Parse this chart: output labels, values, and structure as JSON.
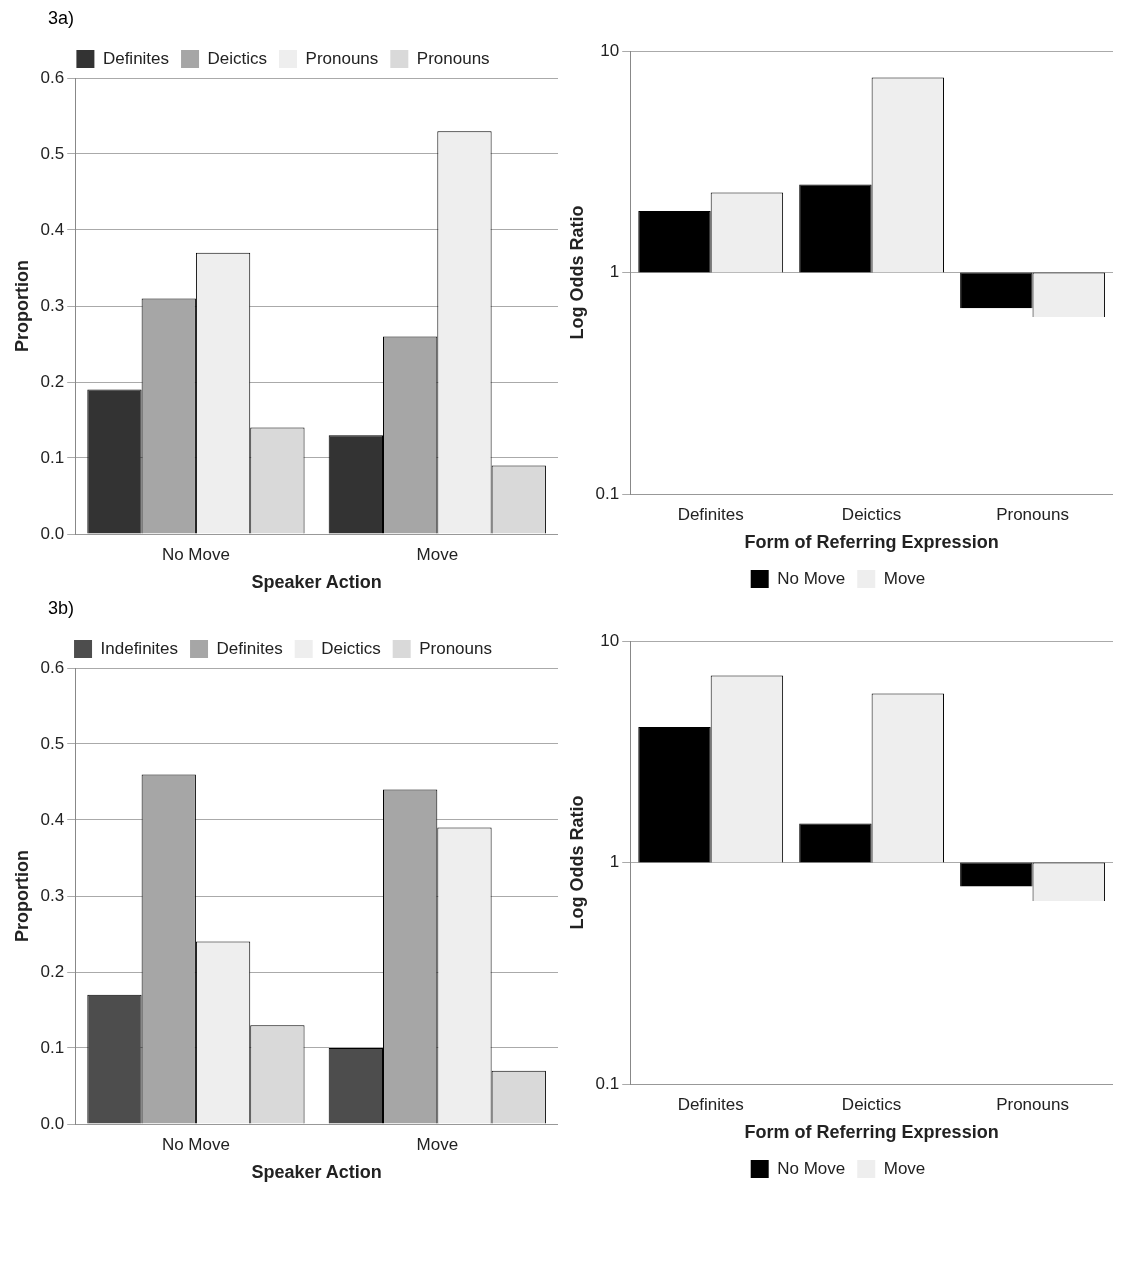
{
  "chart_data": [
    {
      "type": "bar",
      "title": "3a)",
      "categories": [
        "No Move",
        "Move"
      ],
      "xlabel": "Speaker Action",
      "ylabel": "Proportion",
      "ylim": [
        0,
        0.6
      ],
      "yticks": [
        {
          "value": 0,
          "label": "0.0"
        },
        {
          "value": 0.1,
          "label": "0.1"
        },
        {
          "value": 0.2,
          "label": "0.2"
        },
        {
          "value": 0.3,
          "label": "0.3"
        },
        {
          "value": 0.4,
          "label": "0.4"
        },
        {
          "value": 0.5,
          "label": "0.5"
        },
        {
          "value": 0.6,
          "label": "0.6"
        }
      ],
      "grid": "y",
      "legend": "top",
      "series": [
        {
          "name": "Definites",
          "color": "#333333",
          "values": [
            0.19,
            0.13
          ]
        },
        {
          "name": "Deictics",
          "color": "#a6a6a6",
          "values": [
            0.31,
            0.26
          ]
        },
        {
          "name": "Pronouns",
          "color": "#eeeeee",
          "values": [
            0.37,
            0.53
          ]
        },
        {
          "name": "Pronouns",
          "color": "#d9d9d9",
          "values": [
            0.14,
            0.09
          ]
        }
      ]
    },
    {
      "type": "bar",
      "categories": [
        "Definites",
        "Deictics",
        "Pronouns"
      ],
      "xlabel": "Form of Referring Expression",
      "ylabel": "Log Odds Ratio",
      "log": "y",
      "ylim": [
        0.1,
        10
      ],
      "yticks": [
        0.1,
        1,
        10
      ],
      "grid": "y",
      "legend": "bottom",
      "series": [
        {
          "name": "No Move",
          "color": "#000000",
          "values": [
            0.9,
            1.5,
            -0.31
          ],
          "base": [
            1,
            1,
            1
          ]
        },
        {
          "name": "Move",
          "color": "#eeeeee",
          "values": [
            1.3,
            6.6,
            -0.37
          ],
          "base": [
            1,
            1,
            1
          ]
        }
      ]
    },
    {
      "type": "bar",
      "title": "3b)",
      "categories": [
        "No Move",
        "Move"
      ],
      "xlabel": "Speaker Action",
      "ylabel": "Proportion",
      "ylim": [
        0,
        0.6
      ],
      "yticks": [
        {
          "value": 0,
          "label": "0.0"
        },
        {
          "value": 0.1,
          "label": "0.1"
        },
        {
          "value": 0.2,
          "label": "0.2"
        },
        {
          "value": 0.3,
          "label": "0.3"
        },
        {
          "value": 0.4,
          "label": "0.4"
        },
        {
          "value": 0.5,
          "label": "0.5"
        },
        {
          "value": 0.6,
          "label": "0.6"
        }
      ],
      "grid": "y",
      "legend": "top",
      "series": [
        {
          "name": "Indefinites",
          "color": "#4d4d4d",
          "values": [
            0.17,
            0.1
          ]
        },
        {
          "name": "Definites",
          "color": "#a6a6a6",
          "values": [
            0.46,
            0.44
          ]
        },
        {
          "name": "Deictics",
          "color": "#eeeeee",
          "values": [
            0.24,
            0.39
          ]
        },
        {
          "name": "Pronouns",
          "color": "#d9d9d9",
          "values": [
            0.13,
            0.07
          ]
        }
      ]
    },
    {
      "type": "bar",
      "categories": [
        "Definites",
        "Deictics",
        "Pronouns"
      ],
      "xlabel": "Form of Referring Expression",
      "ylabel": "Log Odds Ratio",
      "log": "y",
      "ylim": [
        0.1,
        10
      ],
      "yticks": [
        0.1,
        1,
        10
      ],
      "grid": "y",
      "legend": "bottom",
      "series": [
        {
          "name": "No Move",
          "color": "#000000",
          "values": [
            3.1,
            0.5,
            -0.22
          ],
          "base": [
            1,
            1,
            1
          ]
        },
        {
          "name": "Move",
          "color": "#eeeeee",
          "values": [
            6,
            4.8,
            -0.33
          ],
          "base": [
            1,
            1,
            1
          ]
        }
      ]
    }
  ]
}
